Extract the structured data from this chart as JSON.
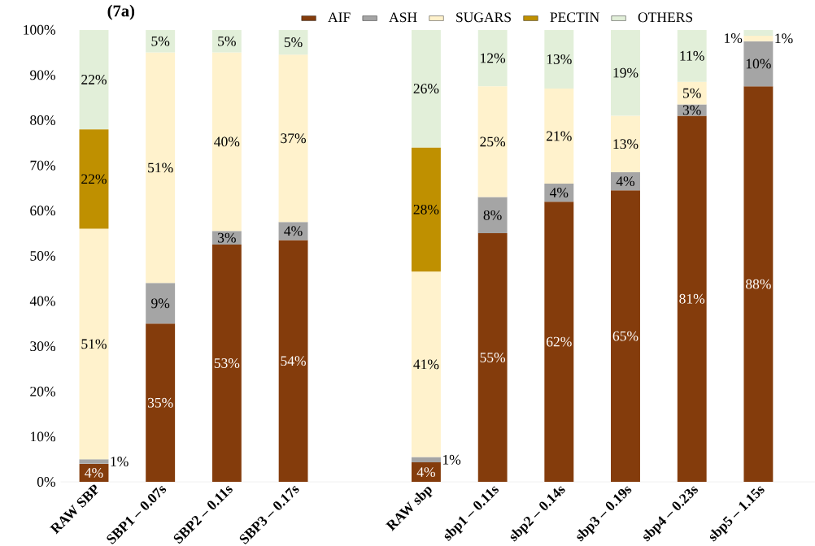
{
  "chart_data": {
    "type": "bar",
    "stacked": true,
    "title": "(7a)",
    "categories": [
      "RAW SBP",
      "SBP1 – 0.07s",
      "SBP2 – 0.11s",
      "SBP3 – 0.17s",
      null,
      "RAW sbp",
      "sbp1 – 0.11s",
      "sbp2 – 0.14s",
      "sbp3 – 0.19s",
      "sbp4 – 0.23s",
      "sbp5 – 1.15s"
    ],
    "series": [
      {
        "name": "AIF",
        "color": "#843c0c",
        "values": [
          4,
          35,
          52.5,
          53.5,
          null,
          4.3,
          55,
          62,
          64.5,
          81,
          87.5
        ],
        "value_labels": [
          "4%",
          "35%",
          "53%",
          "54%",
          null,
          "4%",
          "55%",
          "62%",
          "65%",
          "81%",
          "88%"
        ]
      },
      {
        "name": "ASH",
        "color": "#a5a5a5",
        "values": [
          1,
          9,
          3,
          4,
          null,
          1.2,
          8,
          4,
          4,
          2.5,
          10
        ],
        "value_labels": [
          "1%",
          "9%",
          "3%",
          "4%",
          null,
          "1%",
          "8%",
          "4%",
          "4%",
          "3%",
          "10%"
        ]
      },
      {
        "name": "SUGARS",
        "color": "#fff2cc",
        "values": [
          51,
          51,
          39.5,
          37,
          null,
          41,
          24.5,
          21,
          12.5,
          5,
          1.2
        ],
        "value_labels": [
          "51%",
          "51%",
          "40%",
          "37%",
          null,
          "41%",
          "25%",
          "21%",
          "13%",
          "5%",
          "1%"
        ]
      },
      {
        "name": "PECTIN",
        "color": "#bf9000",
        "values": [
          22,
          null,
          null,
          null,
          null,
          27.5,
          null,
          null,
          null,
          null,
          null
        ],
        "value_labels": [
          "22%",
          null,
          null,
          null,
          null,
          "28%",
          null,
          null,
          null,
          null,
          null
        ]
      },
      {
        "name": "OTHERS",
        "color": "#e2efd9",
        "values": [
          22,
          5,
          5,
          5.5,
          null,
          26,
          12.5,
          13,
          19,
          11.5,
          1.3
        ],
        "value_labels": [
          "22%",
          "5%",
          "5%",
          "5%",
          null,
          "26%",
          "12%",
          "13%",
          "19%",
          "11%",
          "1%"
        ]
      }
    ],
    "ylim": [
      0,
      100
    ],
    "yticks": [
      {
        "value": 0,
        "label": "0%"
      },
      {
        "value": 10,
        "label": "10%"
      },
      {
        "value": 20,
        "label": "20%"
      },
      {
        "value": 30,
        "label": "30%"
      },
      {
        "value": 40,
        "label": "40%"
      },
      {
        "value": 50,
        "label": "50%"
      },
      {
        "value": 60,
        "label": "60%"
      },
      {
        "value": 70,
        "label": "70%"
      },
      {
        "value": 80,
        "label": "80%"
      },
      {
        "value": 90,
        "label": "90%"
      },
      {
        "value": 100,
        "label": "100%"
      }
    ],
    "legend": "top"
  }
}
